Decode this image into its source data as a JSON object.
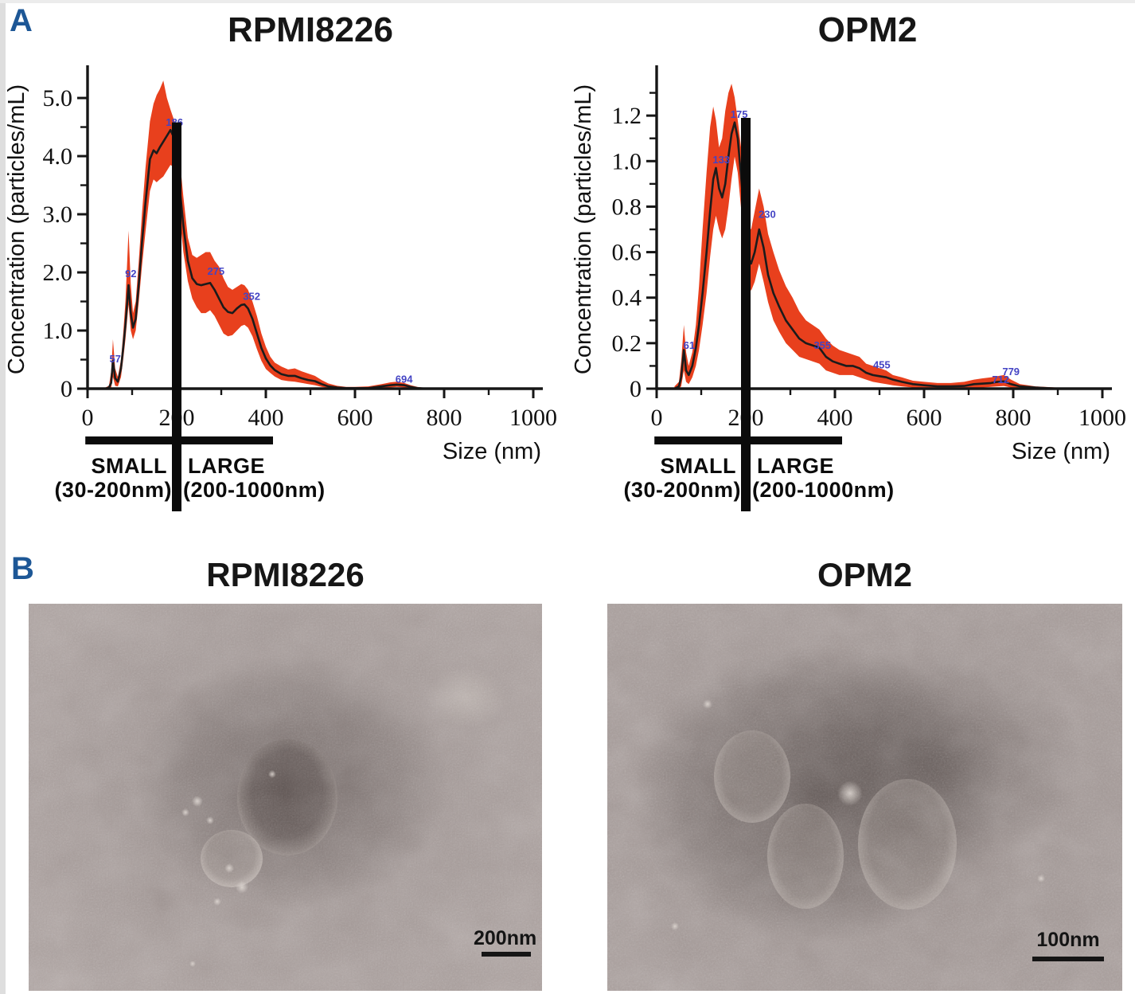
{
  "panels": {
    "a": "A",
    "b": "B"
  },
  "colors": {
    "band": "#e8401d",
    "curve": "#1b1b1b",
    "peak_label": "#4444c4",
    "axis": "#161616",
    "annotation": "#0b0b0b",
    "panel_letter": "#1d5796",
    "title": "#161616"
  },
  "chart_data": [
    {
      "type": "area",
      "title": "RPMI8226",
      "xlabel": "Size (nm)",
      "ylabel": "Concentration (particles/mL)",
      "xlim": [
        0,
        1000
      ],
      "ylim": [
        0,
        5.48
      ],
      "xticks": [
        0,
        200,
        400,
        600,
        800,
        1000
      ],
      "xtick_labels": [
        "0",
        "200",
        "400",
        "600",
        "800",
        "1000"
      ],
      "yticks": [
        0,
        1.0,
        2.0,
        3.0,
        4.0,
        5.0
      ],
      "ytick_labels": [
        "0",
        "1.0",
        "2.0",
        "3.0",
        "4.0",
        "5.0"
      ],
      "y_minor_step": 0.5,
      "grid": false,
      "legend": null,
      "series": {
        "x": [
          40,
          48,
          53,
          57,
          62,
          68,
          75,
          80,
          85,
          92,
          97,
          102,
          108,
          115,
          122,
          130,
          140,
          148,
          155,
          162,
          170,
          178,
          186,
          195,
          205,
          215,
          225,
          235,
          245,
          255,
          265,
          275,
          285,
          295,
          305,
          315,
          325,
          335,
          345,
          352,
          360,
          370,
          380,
          390,
          400,
          410,
          420,
          435,
          450,
          465,
          480,
          495,
          510,
          525,
          540,
          560,
          580,
          600,
          630,
          660,
          680,
          694,
          710,
          725,
          740,
          760,
          800,
          900,
          1000
        ],
        "mean": [
          0,
          0.02,
          0.1,
          0.48,
          0.18,
          0.12,
          0.35,
          0.7,
          1.1,
          1.78,
          1.3,
          1.05,
          1.2,
          1.8,
          2.5,
          3.2,
          3.95,
          4.1,
          4.05,
          4.15,
          4.25,
          4.35,
          4.45,
          4.3,
          3.6,
          2.8,
          2.2,
          1.9,
          1.8,
          1.78,
          1.8,
          1.82,
          1.7,
          1.55,
          1.4,
          1.32,
          1.3,
          1.38,
          1.44,
          1.45,
          1.38,
          1.2,
          0.95,
          0.7,
          0.52,
          0.4,
          0.32,
          0.25,
          0.22,
          0.22,
          0.18,
          0.15,
          0.13,
          0.08,
          0.04,
          0.02,
          0.01,
          0.01,
          0.01,
          0.04,
          0.06,
          0.07,
          0.06,
          0.03,
          0.01,
          0,
          0,
          0,
          0
        ],
        "upper": [
          0.02,
          0.05,
          0.3,
          0.85,
          0.35,
          0.2,
          0.5,
          0.95,
          1.5,
          2.72,
          1.8,
          1.3,
          1.5,
          2.2,
          3.0,
          3.8,
          4.6,
          4.9,
          5.05,
          5.15,
          5.3,
          5.0,
          4.8,
          4.6,
          4.1,
          3.3,
          2.6,
          2.3,
          2.25,
          2.3,
          2.35,
          2.35,
          2.2,
          2.1,
          1.9,
          1.75,
          1.7,
          1.75,
          1.8,
          1.78,
          1.7,
          1.5,
          1.25,
          0.95,
          0.72,
          0.55,
          0.45,
          0.38,
          0.33,
          0.35,
          0.3,
          0.26,
          0.22,
          0.15,
          0.09,
          0.05,
          0.03,
          0.03,
          0.04,
          0.08,
          0.11,
          0.12,
          0.1,
          0.06,
          0.03,
          0.01,
          0.01,
          0,
          0
        ],
        "lower": [
          0,
          0,
          0.02,
          0.2,
          0.05,
          0.04,
          0.2,
          0.5,
          0.85,
          1.45,
          1.0,
          0.85,
          1.0,
          1.5,
          2.1,
          2.7,
          3.4,
          3.6,
          3.55,
          3.6,
          3.65,
          3.75,
          3.85,
          3.8,
          3.1,
          2.35,
          1.85,
          1.55,
          1.4,
          1.3,
          1.3,
          1.35,
          1.25,
          1.1,
          0.95,
          0.9,
          0.92,
          1.0,
          1.08,
          1.1,
          1.05,
          0.9,
          0.68,
          0.48,
          0.34,
          0.27,
          0.21,
          0.15,
          0.13,
          0.12,
          0.1,
          0.08,
          0.06,
          0.03,
          0.01,
          0,
          0,
          0,
          0,
          0.01,
          0.02,
          0.03,
          0.02,
          0.01,
          0,
          0,
          0,
          0,
          0
        ]
      },
      "peak_labels": [
        {
          "text": "57",
          "x": 62,
          "y": 0.45
        },
        {
          "text": "92",
          "x": 97,
          "y": 1.92
        },
        {
          "text": "186",
          "x": 195,
          "y": 4.52
        },
        {
          "text": "275",
          "x": 288,
          "y": 1.96
        },
        {
          "text": "352",
          "x": 368,
          "y": 1.53
        },
        {
          "text": "694",
          "x": 710,
          "y": 0.1
        }
      ],
      "cutoff": {
        "x_nm": 200,
        "top_value": 4.58
      },
      "size_classes": {
        "small_label": "SMALL",
        "small_range": "(30-200nm)",
        "large_label": "LARGE",
        "large_range": "(200-1000nm)",
        "divider_nm": 200,
        "bar_span_nm": [
          -5,
          416
        ]
      }
    },
    {
      "type": "area",
      "title": "OPM2",
      "xlabel": "Size (nm)",
      "ylabel": "Concentration (particles/mL)",
      "xlim": [
        0,
        1000
      ],
      "ylim": [
        0,
        1.4
      ],
      "xticks": [
        0,
        200,
        400,
        600,
        800,
        1000
      ],
      "xtick_labels": [
        "0",
        "200",
        "400",
        "600",
        "800",
        "1000"
      ],
      "yticks": [
        0,
        0.2,
        0.4,
        0.6,
        0.8,
        1.0,
        1.2
      ],
      "ytick_labels": [
        "0",
        "0.2",
        "0.4",
        "0.6",
        "0.8",
        "1.0",
        "1.2"
      ],
      "y_minor_step": 0.1,
      "grid": false,
      "legend": null,
      "series": {
        "x": [
          40,
          50,
          55,
          61,
          66,
          72,
          80,
          88,
          95,
          103,
          112,
          120,
          127,
          133,
          140,
          147,
          154,
          161,
          168,
          175,
          182,
          190,
          198,
          205,
          212,
          220,
          230,
          240,
          250,
          262,
          275,
          290,
          305,
          320,
          335,
          350,
          365,
          380,
          395,
          410,
          425,
          440,
          455,
          470,
          485,
          500,
          515,
          530,
          550,
          575,
          600,
          630,
          660,
          690,
          712,
          730,
          750,
          765,
          779,
          795,
          815,
          850,
          900,
          1000
        ],
        "mean": [
          0,
          0.01,
          0.05,
          0.17,
          0.08,
          0.06,
          0.1,
          0.18,
          0.28,
          0.42,
          0.6,
          0.78,
          0.92,
          0.97,
          0.88,
          0.84,
          0.9,
          1.02,
          1.12,
          1.17,
          1.1,
          0.92,
          0.72,
          0.58,
          0.55,
          0.6,
          0.7,
          0.62,
          0.5,
          0.42,
          0.36,
          0.3,
          0.26,
          0.22,
          0.2,
          0.19,
          0.18,
          0.14,
          0.12,
          0.11,
          0.1,
          0.1,
          0.09,
          0.07,
          0.06,
          0.055,
          0.05,
          0.04,
          0.03,
          0.02,
          0.015,
          0.01,
          0.01,
          0.012,
          0.02,
          0.022,
          0.025,
          0.03,
          0.032,
          0.02,
          0.01,
          0.005,
          0,
          0
        ],
        "upper": [
          0.01,
          0.03,
          0.12,
          0.28,
          0.16,
          0.1,
          0.16,
          0.28,
          0.45,
          0.7,
          0.95,
          1.15,
          1.24,
          1.18,
          1.06,
          1.1,
          1.22,
          1.3,
          1.34,
          1.28,
          1.18,
          1.05,
          0.85,
          0.72,
          0.7,
          0.78,
          0.88,
          0.8,
          0.68,
          0.6,
          0.52,
          0.45,
          0.4,
          0.34,
          0.3,
          0.28,
          0.26,
          0.22,
          0.19,
          0.17,
          0.16,
          0.15,
          0.14,
          0.11,
          0.1,
          0.09,
          0.08,
          0.06,
          0.05,
          0.035,
          0.03,
          0.025,
          0.025,
          0.03,
          0.04,
          0.045,
          0.05,
          0.055,
          0.06,
          0.04,
          0.02,
          0.01,
          0.005,
          0
        ],
        "lower": [
          0,
          0,
          0.01,
          0.08,
          0.03,
          0.02,
          0.05,
          0.1,
          0.17,
          0.28,
          0.42,
          0.58,
          0.7,
          0.76,
          0.7,
          0.66,
          0.7,
          0.8,
          0.92,
          1.02,
          0.95,
          0.78,
          0.6,
          0.47,
          0.43,
          0.47,
          0.55,
          0.47,
          0.38,
          0.3,
          0.25,
          0.2,
          0.17,
          0.14,
          0.13,
          0.12,
          0.11,
          0.08,
          0.07,
          0.06,
          0.06,
          0.06,
          0.05,
          0.04,
          0.03,
          0.025,
          0.02,
          0.015,
          0.01,
          0.005,
          0.005,
          0,
          0,
          0,
          0.005,
          0.005,
          0.008,
          0.01,
          0.012,
          0.005,
          0,
          0,
          0,
          0
        ]
      },
      "peak_labels": [
        {
          "text": "61",
          "x": 73,
          "y": 0.175
        },
        {
          "text": "133",
          "x": 145,
          "y": 0.99
        },
        {
          "text": "175",
          "x": 185,
          "y": 1.19
        },
        {
          "text": "230",
          "x": 248,
          "y": 0.75
        },
        {
          "text": "355",
          "x": 372,
          "y": 0.175
        },
        {
          "text": "455",
          "x": 505,
          "y": 0.09
        },
        {
          "text": "712",
          "x": 772,
          "y": 0.025
        },
        {
          "text": "779",
          "x": 795,
          "y": 0.06
        }
      ],
      "cutoff": {
        "x_nm": 200,
        "top_value": 1.19
      },
      "size_classes": {
        "small_label": "SMALL",
        "small_range": "(30-200nm)",
        "large_label": "LARGE",
        "large_range": "(200-1000nm)",
        "divider_nm": 200,
        "bar_span_nm": [
          -5,
          416
        ]
      }
    }
  ],
  "em": {
    "images": [
      {
        "title": "RPMI8226",
        "scale_bar": "200nm"
      },
      {
        "title": "OPM2",
        "scale_bar": "100nm"
      }
    ]
  }
}
